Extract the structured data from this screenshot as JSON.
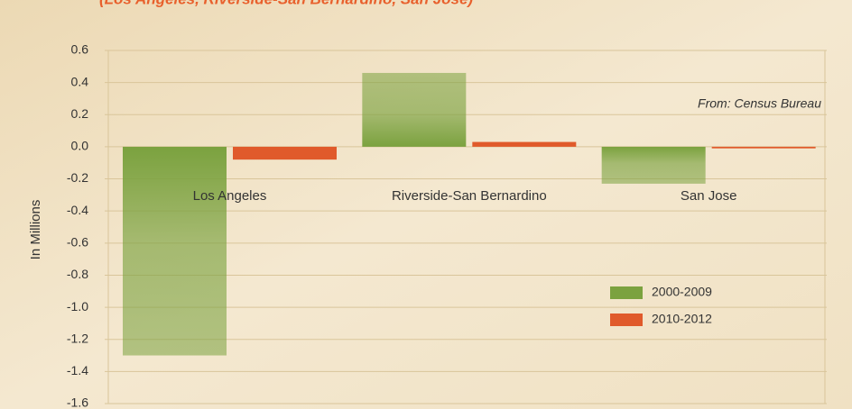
{
  "chart_data": {
    "type": "bar",
    "subtitle": "(Los Angeles, Riverside-San Bernardino, San Jose)",
    "y_label": "In Millions",
    "annotation": "From: Census Bureau",
    "categories": [
      "Los Angeles",
      "Riverside-San Bernardino",
      "San Jose"
    ],
    "series": [
      {
        "name": "2000-2009",
        "color": "#7ba23f",
        "values": [
          -1.3,
          0.46,
          -0.23
        ]
      },
      {
        "name": "2010-2012",
        "color": "#e05a2b",
        "values": [
          -0.08,
          0.03,
          -0.01
        ]
      }
    ],
    "ylim": [
      -1.6,
      0.6
    ],
    "yticks": [
      0.6,
      0.4,
      0.2,
      {
        "value": 0,
        "label": "0.0"
      },
      -0.2,
      -0.4,
      -0.6,
      -0.8,
      {
        "value": -1,
        "label": "-1.0"
      },
      -1.2,
      -1.4,
      -1.6
    ],
    "grid": true,
    "legend": "lower right"
  }
}
